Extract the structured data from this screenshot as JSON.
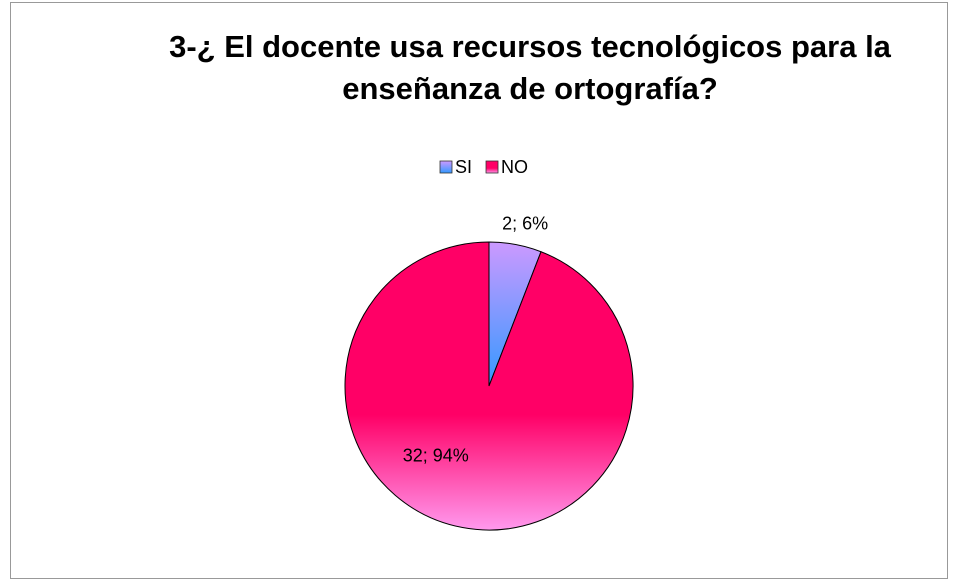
{
  "chart_data": {
    "type": "pie",
    "title": "3-¿ El docente usa recursos tecnológicos para la enseñanza de ortografía?",
    "categories": [
      "SI",
      "NO"
    ],
    "values": [
      2,
      32
    ],
    "value_labels": [
      "2; 6%",
      "32; 94%"
    ],
    "colors": [
      "#3399ff",
      "#ff0066"
    ],
    "legend": "top"
  }
}
